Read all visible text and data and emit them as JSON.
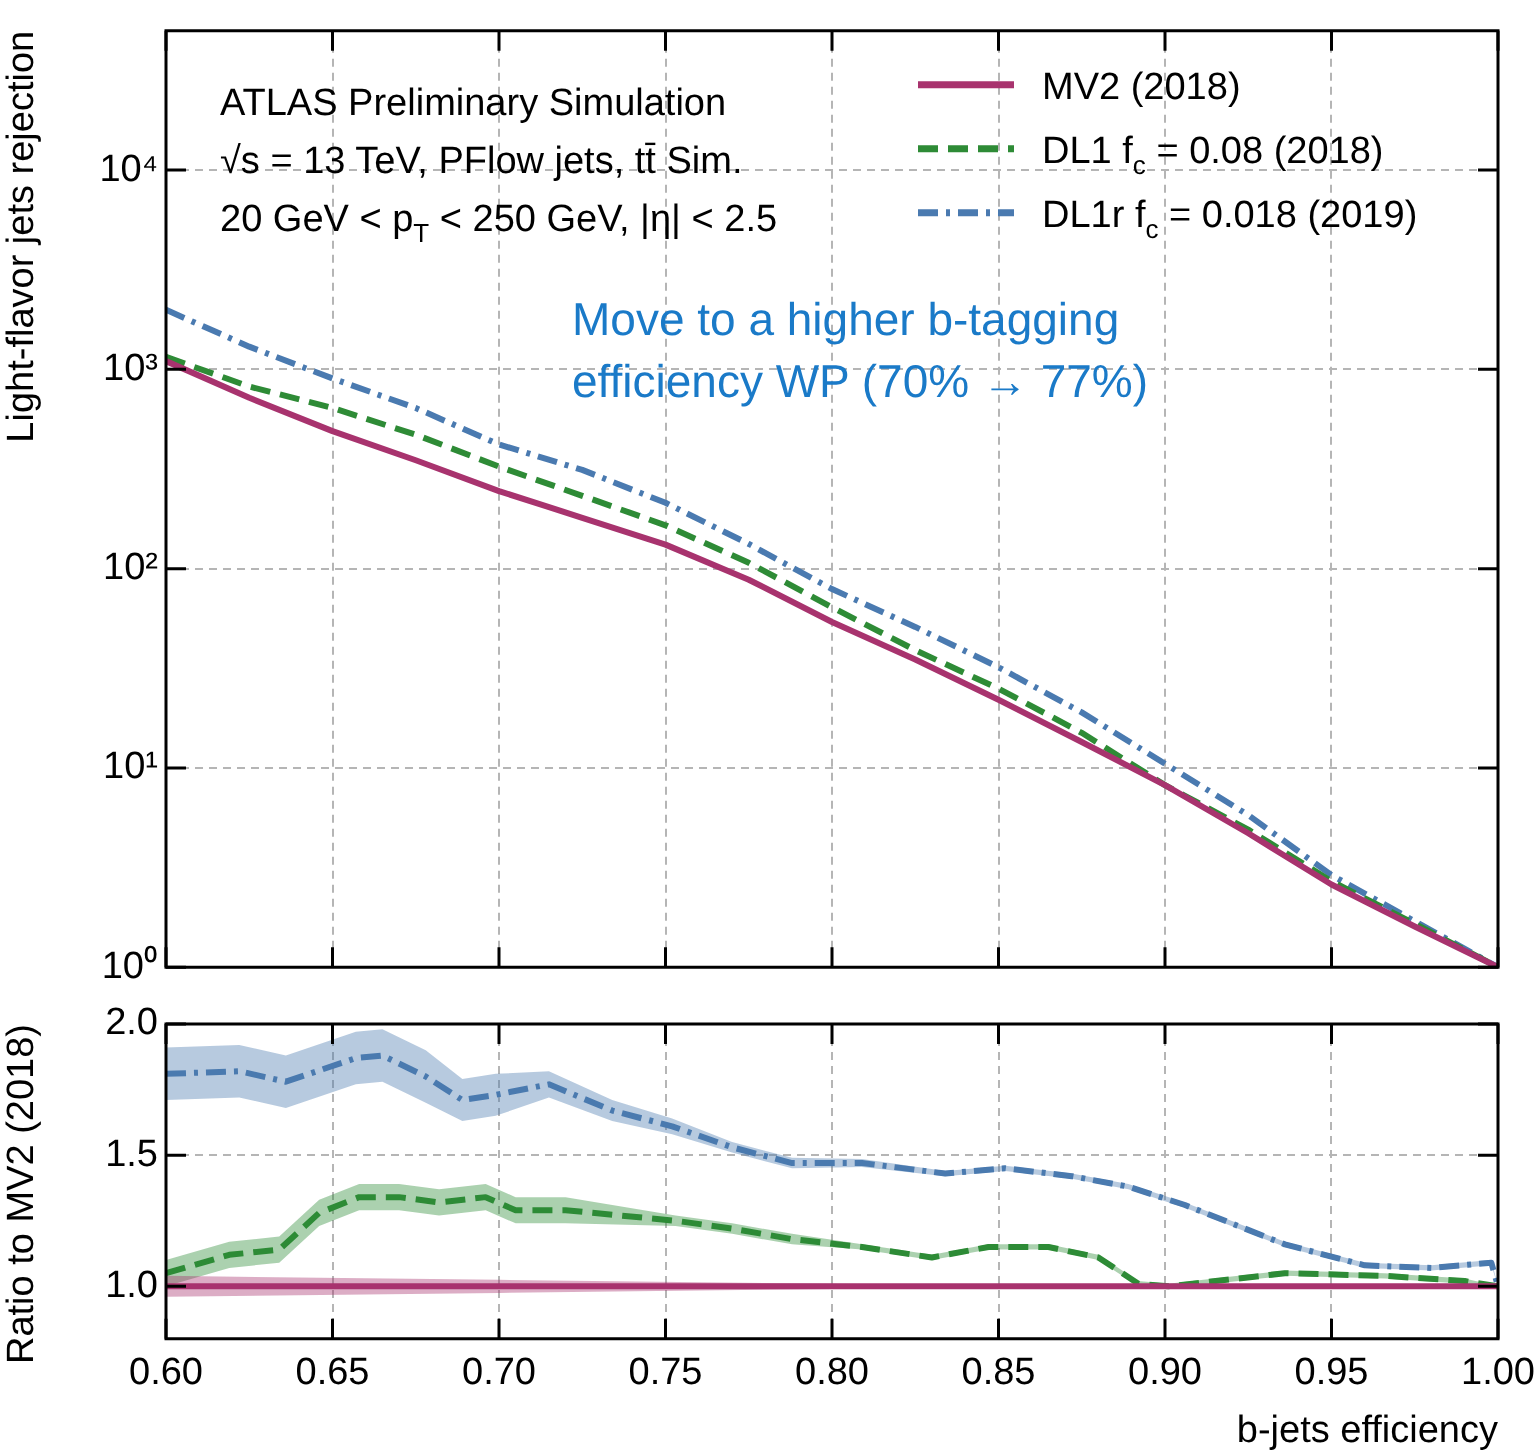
{
  "chart_data": [
    {
      "type": "line",
      "ylabel": "Light-flavor jets rejection",
      "log": true,
      "grid": true,
      "legend": "top right",
      "tick_labels": "y",
      "xlim": [
        0.6,
        1.0
      ],
      "xticks": [
        0.6,
        0.65,
        0.7,
        0.75,
        0.8,
        0.85,
        0.9,
        0.95,
        1.0
      ],
      "ylim": [
        1,
        50000
      ],
      "yticks": [
        {
          "value": 1,
          "label": "10⁰"
        },
        {
          "value": 10,
          "label": "10¹"
        },
        {
          "value": 100,
          "label": "10²"
        },
        {
          "value": 1000,
          "label": "10³"
        },
        {
          "value": 10000,
          "label": "10⁴"
        }
      ],
      "annotations": [
        "ATLAS Preliminary Simulation",
        "√s = 13 TeV, PFlow jets, tt̄ Sim.",
        "20 GeV < p$_{T}$ < 250 GeV, |η| < 2.5",
        "Move to a higher b-tagging efficiency WP (70% → 77%)"
      ],
      "x": [
        0.6,
        0.625,
        0.65,
        0.675,
        0.7,
        0.725,
        0.75,
        0.775,
        0.8,
        0.825,
        0.85,
        0.875,
        0.9,
        0.925,
        0.95,
        0.975,
        1.0
      ],
      "series": [
        {
          "name": "MV2 (2018)",
          "color": "#a8336e",
          "line_style": "solid",
          "values": [
            1100,
            720,
            490,
            350,
            245,
            180,
            132,
            88,
            54,
            35,
            22,
            13.5,
            8.2,
            4.7,
            2.6,
            1.6,
            1.0
          ]
        },
        {
          "name": "DL1 f$_{c}$ = 0.08 (2018)",
          "color": "#2e8b36",
          "line_style": "dashed",
          "values": [
            1155,
            820,
            640,
            470,
            325,
            232,
            165,
            107,
            64,
            39,
            25,
            15,
            8.2,
            4.9,
            2.7,
            1.65,
            1.0
          ]
        },
        {
          "name": "DL1r f$_{c}$ = 0.018 (2019)",
          "color": "#4a7ab0",
          "line_style": "dashdot",
          "values": [
            1990,
            1300,
            900,
            640,
            420,
            313,
            214,
            133,
            79,
            51,
            32,
            19,
            10.5,
            5.8,
            2.9,
            1.7,
            1.0
          ]
        }
      ]
    },
    {
      "type": "line",
      "xlabel": "b-jets efficiency",
      "ylabel": "Ratio to MV2 (2018)",
      "grid": true,
      "xlim": [
        0.6,
        1.0
      ],
      "xticks": [
        {
          "value": 0.6,
          "label": "0.60"
        },
        {
          "value": 0.65,
          "label": "0.65"
        },
        {
          "value": 0.7,
          "label": "0.70"
        },
        {
          "value": 0.75,
          "label": "0.75"
        },
        {
          "value": 0.8,
          "label": "0.80"
        },
        {
          "value": 0.85,
          "label": "0.85"
        },
        {
          "value": 0.9,
          "label": "0.90"
        },
        {
          "value": 0.95,
          "label": "0.95"
        },
        {
          "value": 1.0,
          "label": "1.00"
        }
      ],
      "ylim": [
        0.8,
        2.0
      ],
      "yticks": [
        {
          "value": 1,
          "label": "1.0"
        },
        {
          "value": 1.5,
          "label": "1.5"
        },
        {
          "value": 2,
          "label": "2.0"
        }
      ],
      "series": [
        {
          "color": "#a8336e",
          "line_style": "solid",
          "x": [
            0.6,
            0.7,
            0.8,
            0.9,
            1.0
          ],
          "values": [
            1,
            1,
            1,
            1,
            1
          ],
          "lower": [
            0.96,
            0.975,
            0.99,
            1.0,
            1.0
          ],
          "upper": [
            1.04,
            1.025,
            1.01,
            1.0,
            1.0
          ]
        },
        {
          "color": "#2e8b36",
          "line_style": "dashed",
          "x": [
            0.6,
            0.619,
            0.634,
            0.646,
            0.658,
            0.67,
            0.682,
            0.696,
            0.705,
            0.72,
            0.753,
            0.77,
            0.788,
            0.809,
            0.83,
            0.847,
            0.865,
            0.88,
            0.892,
            0.901,
            0.922,
            0.936,
            0.966,
            0.99,
            1.0
          ],
          "values": [
            1.05,
            1.12,
            1.14,
            1.28,
            1.34,
            1.34,
            1.32,
            1.34,
            1.29,
            1.29,
            1.25,
            1.22,
            1.18,
            1.15,
            1.11,
            1.15,
            1.15,
            1.11,
            1.01,
            1.0,
            1.03,
            1.05,
            1.04,
            1.02,
            1.0
          ],
          "lower": [
            1.0,
            1.07,
            1.09,
            1.23,
            1.29,
            1.29,
            1.27,
            1.29,
            1.24,
            1.24,
            1.23,
            1.2,
            1.16,
            1.14,
            1.1,
            1.14,
            1.14,
            1.1,
            1.0,
            0.99,
            1.02,
            1.04,
            1.03,
            1.01,
            1.0
          ],
          "upper": [
            1.1,
            1.17,
            1.19,
            1.33,
            1.39,
            1.39,
            1.37,
            1.39,
            1.34,
            1.34,
            1.27,
            1.24,
            1.2,
            1.16,
            1.12,
            1.16,
            1.16,
            1.12,
            1.02,
            1.01,
            1.04,
            1.06,
            1.05,
            1.03,
            1.0
          ]
        },
        {
          "color": "#4a7ab0",
          "line_style": "dashdot",
          "x": [
            0.6,
            0.622,
            0.636,
            0.657,
            0.665,
            0.678,
            0.689,
            0.699,
            0.715,
            0.734,
            0.752,
            0.77,
            0.788,
            0.809,
            0.834,
            0.852,
            0.872,
            0.889,
            0.906,
            0.936,
            0.96,
            0.98,
            0.998,
            1.0
          ],
          "values": [
            1.81,
            1.82,
            1.78,
            1.87,
            1.88,
            1.8,
            1.71,
            1.73,
            1.77,
            1.67,
            1.61,
            1.53,
            1.47,
            1.47,
            1.43,
            1.45,
            1.42,
            1.38,
            1.31,
            1.16,
            1.08,
            1.07,
            1.09,
            1.0
          ],
          "lower": [
            1.71,
            1.72,
            1.68,
            1.77,
            1.78,
            1.7,
            1.63,
            1.65,
            1.72,
            1.63,
            1.58,
            1.51,
            1.45,
            1.455,
            1.42,
            1.44,
            1.41,
            1.37,
            1.3,
            1.15,
            1.07,
            1.06,
            1.08,
            1.0
          ],
          "upper": [
            1.91,
            1.92,
            1.88,
            1.97,
            1.98,
            1.9,
            1.79,
            1.81,
            1.82,
            1.71,
            1.64,
            1.55,
            1.49,
            1.485,
            1.44,
            1.46,
            1.43,
            1.39,
            1.32,
            1.17,
            1.09,
            1.08,
            1.1,
            1.0
          ]
        }
      ]
    }
  ]
}
